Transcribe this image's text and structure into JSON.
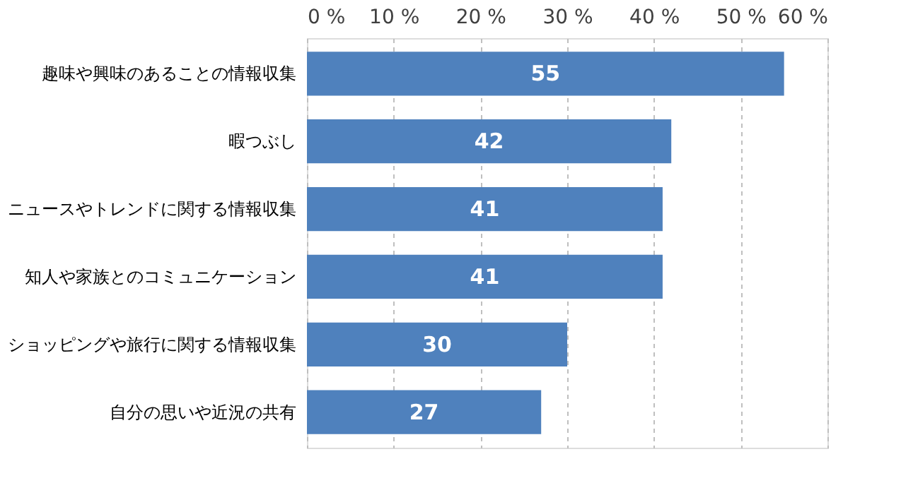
{
  "chart_data": {
    "type": "bar",
    "orientation": "horizontal",
    "categories": [
      "趣味や興味のあることの情報収集",
      "暇つぶし",
      "ニュースやトレンドに関する情報収集",
      "知人や家族とのコミュニケーション",
      "ショッピングや旅行に関する情報収集",
      "自分の思いや近況の共有"
    ],
    "values": [
      55,
      42,
      41,
      41,
      30,
      27
    ],
    "color": "#4f81bd",
    "data_labels": true,
    "xlim": [
      0,
      60
    ],
    "xticks": [
      {
        "value": 0,
        "label": "0 %"
      },
      {
        "value": 10,
        "label": "10 %"
      },
      {
        "value": 20,
        "label": "20 %"
      },
      {
        "value": 30,
        "label": "30 %"
      },
      {
        "value": 40,
        "label": "40 %"
      },
      {
        "value": 50,
        "label": "50 %"
      },
      {
        "value": 60,
        "label": "60 %"
      }
    ],
    "grid": "x"
  }
}
